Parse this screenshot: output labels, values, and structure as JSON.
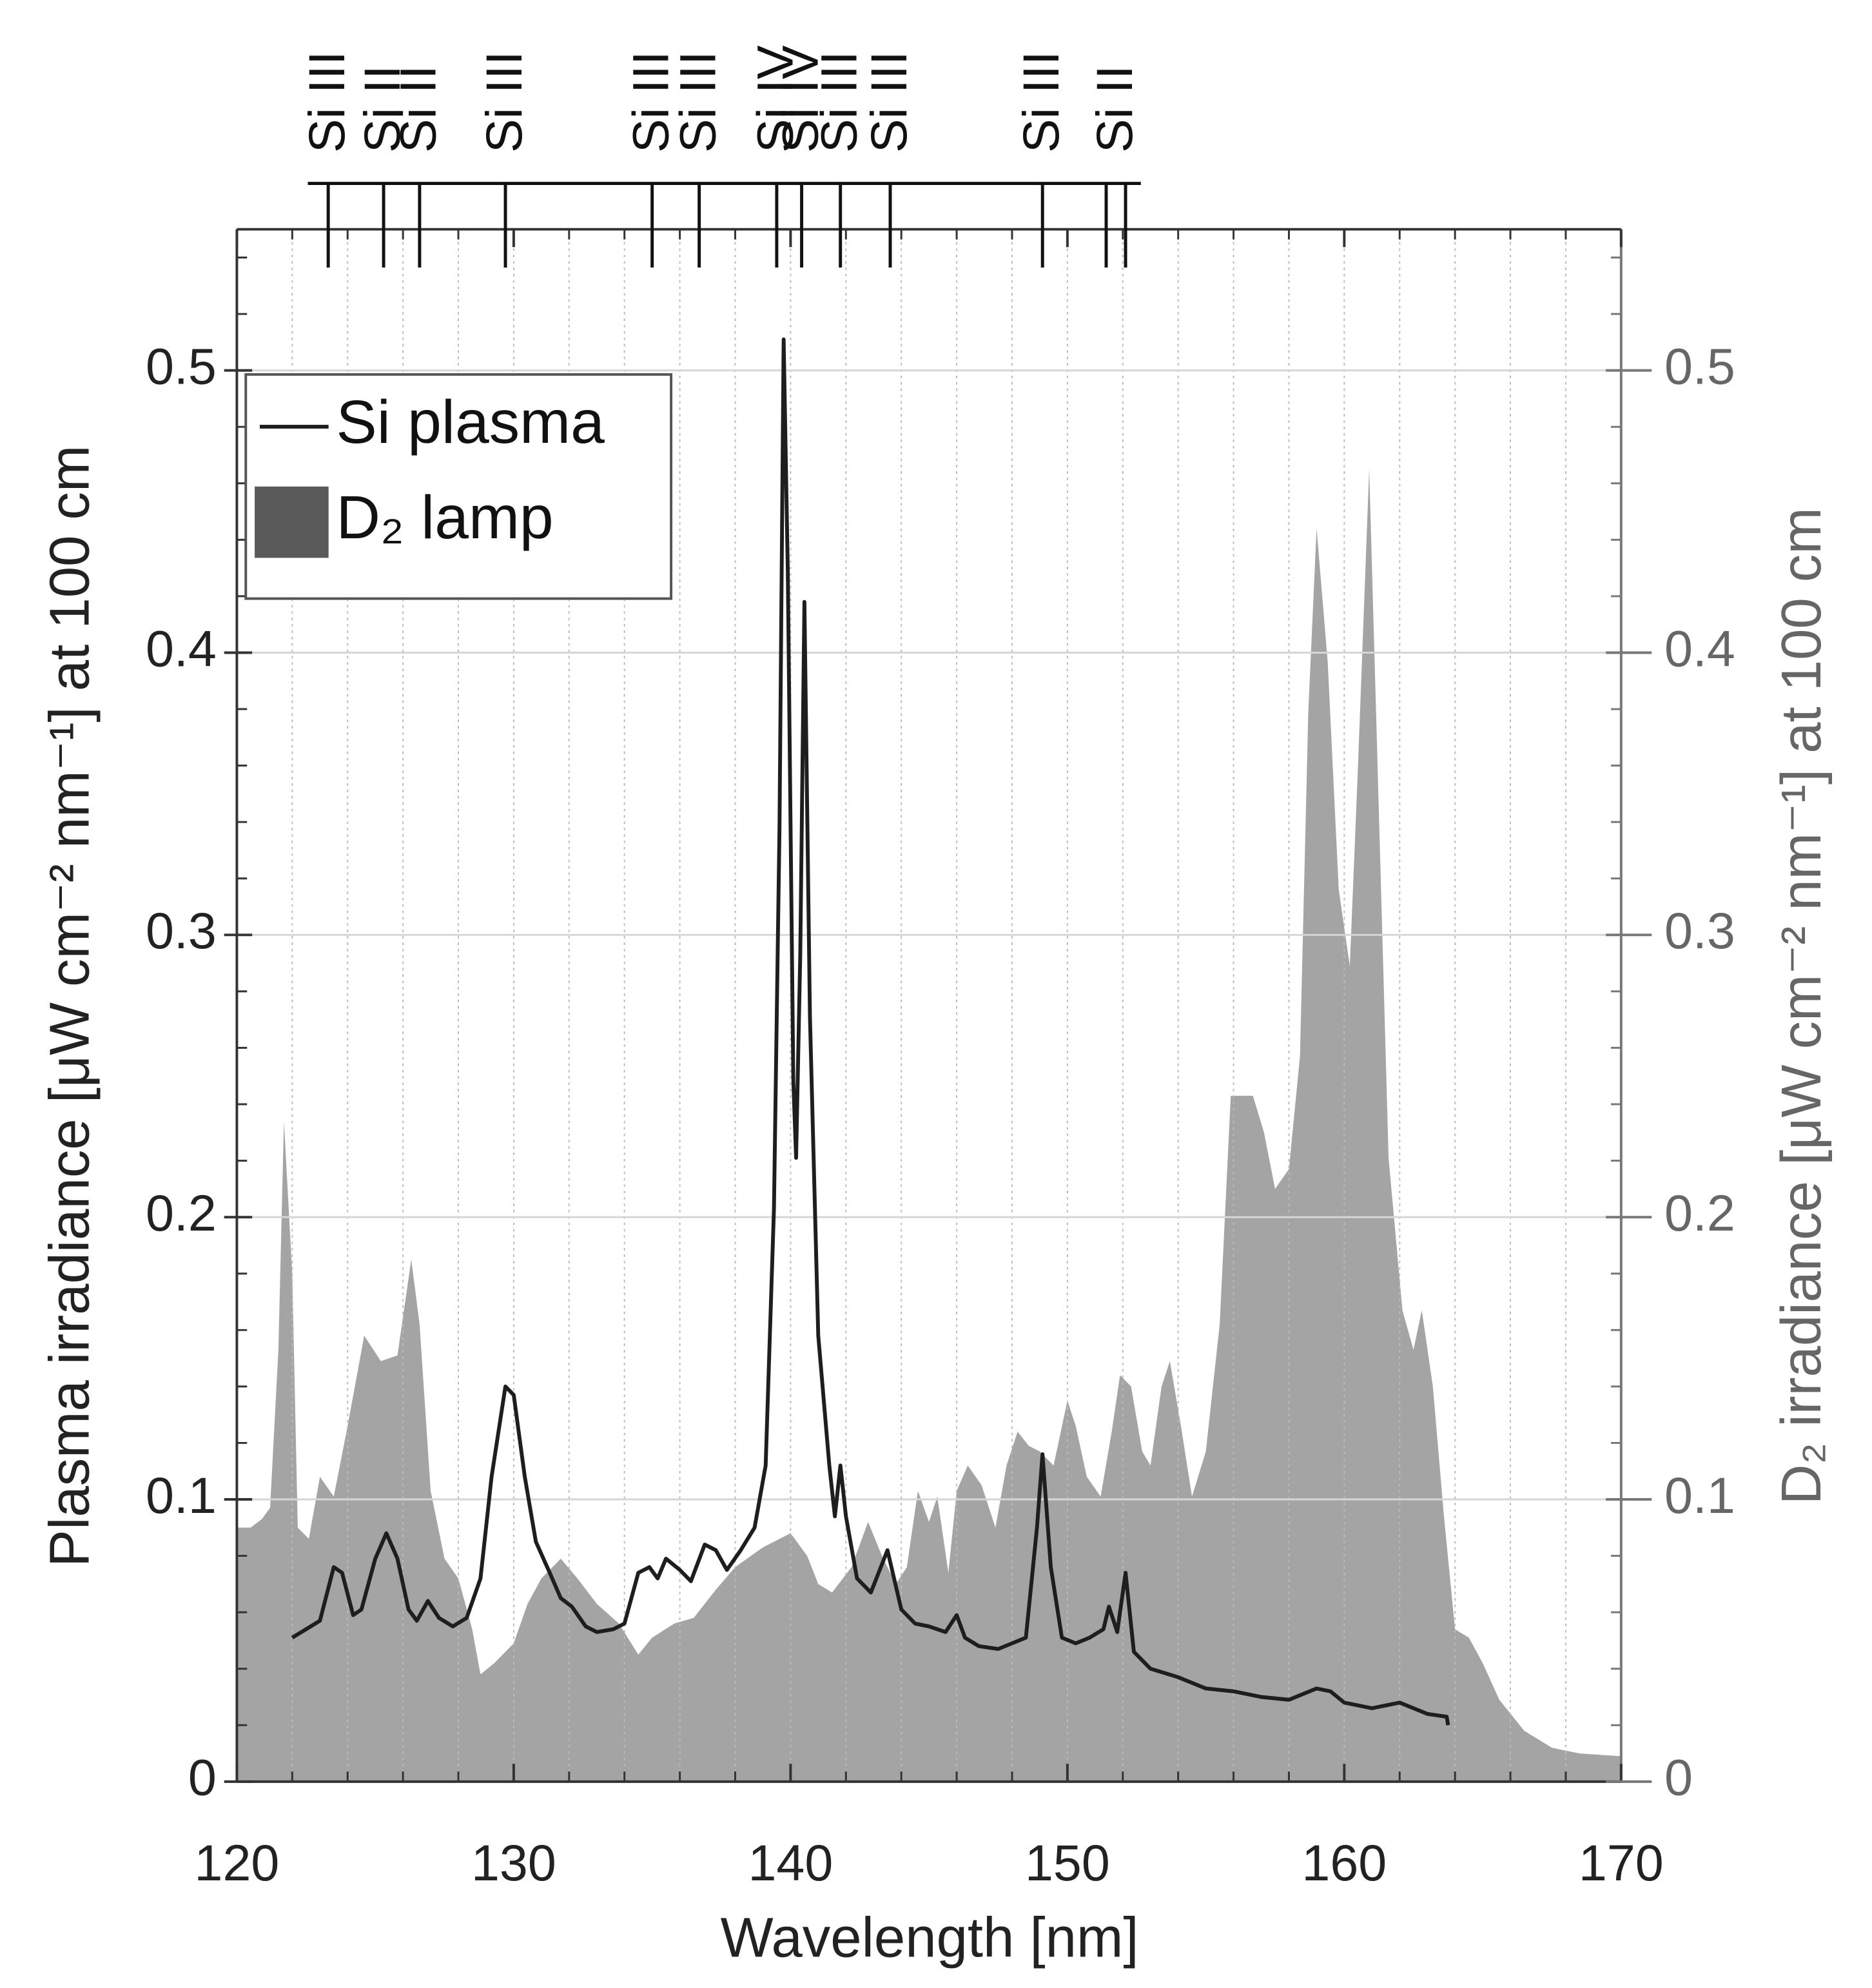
{
  "chart_data": {
    "type": "line",
    "x_label": "Wavelength [nm]",
    "y_label": "Plasma irradiance [μW cm⁻² nm⁻¹] at 100 cm",
    "y2_label": "D₂ irradiance [μW cm⁻² nm⁻¹] at 100 cm",
    "xlim": [
      120,
      170
    ],
    "xticks": [
      120,
      130,
      140,
      150,
      160,
      170
    ],
    "xminorticks": [
      122,
      124,
      126,
      128,
      132,
      134,
      136,
      138,
      142,
      144,
      146,
      148,
      152,
      154,
      156,
      158,
      162,
      164,
      166,
      168
    ],
    "ylim": [
      0,
      0.55
    ],
    "yticks": [
      0,
      0.1,
      0.2,
      0.3,
      0.4,
      0.5
    ],
    "yminorticks": [
      0.02,
      0.04,
      0.06,
      0.08,
      0.12,
      0.14,
      0.16,
      0.18,
      0.22,
      0.24,
      0.26,
      0.28,
      0.32,
      0.34,
      0.36,
      0.38,
      0.42,
      0.44,
      0.46,
      0.48,
      0.52,
      0.54
    ],
    "y2lim": [
      0,
      0.55
    ],
    "y2ticks": [
      0,
      0.1,
      0.2,
      0.3,
      0.4,
      0.5
    ],
    "grid": true,
    "legend": "upper left",
    "line_ids": [
      {
        "label": "Si III",
        "wavelengths": [
          123.3
        ]
      },
      {
        "label": "Si II",
        "wavelengths": [
          125.3
        ]
      },
      {
        "label": "Si II",
        "wavelengths": [
          126.6
        ]
      },
      {
        "label": "Si III",
        "wavelengths": [
          129.7
        ]
      },
      {
        "label": "Si III",
        "wavelengths": [
          135.0
        ]
      },
      {
        "label": "Si III",
        "wavelengths": [
          136.7
        ]
      },
      {
        "label": "Si IV",
        "wavelengths": [
          139.5
        ]
      },
      {
        "label": "Si IV",
        "wavelengths": [
          140.4
        ]
      },
      {
        "label": "Si III",
        "wavelengths": [
          141.8
        ]
      },
      {
        "label": "Si III",
        "wavelengths": [
          143.6
        ]
      },
      {
        "label": "Si III",
        "wavelengths": [
          149.1
        ]
      },
      {
        "label": "Si II",
        "wavelengths": [
          151.4,
          152.1
        ]
      }
    ],
    "series": [
      {
        "name": "D₂ lamp",
        "kind": "area",
        "axis": "y2",
        "color": "#5a5a5a",
        "opacity": 0.55,
        "x": [
          120.0,
          120.5,
          120.9,
          121.2,
          121.5,
          121.7,
          122.0,
          122.2,
          122.6,
          123.0,
          123.5,
          124.0,
          124.6,
          125.2,
          125.8,
          126.3,
          126.6,
          127.0,
          127.5,
          128.0,
          128.5,
          128.8,
          129.3,
          130.0,
          130.5,
          131.0,
          131.7,
          132.3,
          133.0,
          133.8,
          134.5,
          135.0,
          135.8,
          136.5,
          137.3,
          138.0,
          139.0,
          140.0,
          140.6,
          141.0,
          141.5,
          142.2,
          142.8,
          143.3,
          143.8,
          144.2,
          144.6,
          145.0,
          145.3,
          145.7,
          146.0,
          146.4,
          146.9,
          147.4,
          147.8,
          148.2,
          148.6,
          149.0,
          149.5,
          150.0,
          150.3,
          150.7,
          151.2,
          151.6,
          151.9,
          152.3,
          152.7,
          153.0,
          153.4,
          153.7,
          154.1,
          154.5,
          155.0,
          155.5,
          155.9,
          156.3,
          156.7,
          157.1,
          157.5,
          158.0,
          158.4,
          158.7,
          159.0,
          159.4,
          159.8,
          160.2,
          160.5,
          160.9,
          161.2,
          161.6,
          162.1,
          162.5,
          162.8,
          163.2,
          163.6,
          164.0,
          164.5,
          165.0,
          165.6,
          166.5,
          167.5,
          168.5,
          170.0
        ],
        "values": [
          0.09,
          0.09,
          0.093,
          0.097,
          0.153,
          0.234,
          0.18,
          0.09,
          0.086,
          0.108,
          0.101,
          0.126,
          0.158,
          0.149,
          0.151,
          0.185,
          0.162,
          0.103,
          0.079,
          0.072,
          0.054,
          0.038,
          0.042,
          0.049,
          0.063,
          0.072,
          0.079,
          0.072,
          0.063,
          0.056,
          0.045,
          0.051,
          0.056,
          0.058,
          0.068,
          0.076,
          0.083,
          0.088,
          0.08,
          0.07,
          0.067,
          0.076,
          0.092,
          0.08,
          0.07,
          0.076,
          0.103,
          0.092,
          0.101,
          0.074,
          0.103,
          0.112,
          0.105,
          0.09,
          0.112,
          0.124,
          0.119,
          0.117,
          0.112,
          0.135,
          0.126,
          0.108,
          0.101,
          0.124,
          0.144,
          0.14,
          0.117,
          0.112,
          0.14,
          0.149,
          0.126,
          0.101,
          0.117,
          0.162,
          0.243,
          0.243,
          0.243,
          0.23,
          0.21,
          0.217,
          0.257,
          0.379,
          0.444,
          0.397,
          0.316,
          0.289,
          0.361,
          0.465,
          0.361,
          0.221,
          0.167,
          0.153,
          0.167,
          0.14,
          0.094,
          0.054,
          0.051,
          0.042,
          0.029,
          0.018,
          0.012,
          0.01,
          0.009
        ]
      },
      {
        "name": "Si plasma",
        "kind": "line",
        "axis": "y",
        "color": "#1e1e1e",
        "x": [
          122.0,
          122.5,
          123.0,
          123.5,
          123.8,
          124.2,
          124.5,
          125.0,
          125.4,
          125.8,
          126.2,
          126.5,
          126.9,
          127.3,
          127.8,
          128.3,
          128.8,
          129.2,
          129.7,
          130.0,
          130.4,
          130.8,
          131.3,
          131.7,
          132.1,
          132.6,
          133.0,
          133.6,
          134.0,
          134.5,
          134.9,
          135.2,
          135.5,
          136.0,
          136.4,
          136.9,
          137.3,
          137.7,
          138.2,
          138.7,
          139.1,
          139.4,
          139.6,
          139.75,
          139.9,
          140.1,
          140.2,
          140.35,
          140.5,
          140.7,
          141.0,
          141.4,
          141.6,
          141.8,
          142.0,
          142.4,
          142.9,
          143.5,
          144.0,
          144.5,
          145.0,
          145.6,
          146.0,
          146.3,
          146.8,
          147.5,
          148.0,
          148.5,
          148.9,
          149.1,
          149.4,
          149.8,
          150.3,
          150.8,
          151.3,
          151.5,
          151.8,
          152.1,
          152.4,
          153.0,
          154.0,
          155.0,
          156.0,
          157.0,
          158.0,
          159.0,
          159.5,
          160.0,
          161.0,
          162.0,
          163.0,
          163.7,
          163.75
        ],
        "values": [
          0.051,
          0.054,
          0.057,
          0.076,
          0.074,
          0.059,
          0.061,
          0.079,
          0.088,
          0.079,
          0.061,
          0.057,
          0.064,
          0.058,
          0.055,
          0.058,
          0.072,
          0.108,
          0.14,
          0.137,
          0.108,
          0.085,
          0.074,
          0.065,
          0.062,
          0.055,
          0.053,
          0.054,
          0.056,
          0.074,
          0.076,
          0.072,
          0.079,
          0.075,
          0.071,
          0.084,
          0.082,
          0.075,
          0.082,
          0.09,
          0.112,
          0.203,
          0.338,
          0.511,
          0.429,
          0.248,
          0.221,
          0.293,
          0.418,
          0.271,
          0.158,
          0.112,
          0.094,
          0.112,
          0.094,
          0.072,
          0.067,
          0.082,
          0.061,
          0.056,
          0.055,
          0.053,
          0.059,
          0.051,
          0.048,
          0.047,
          0.049,
          0.051,
          0.09,
          0.116,
          0.076,
          0.051,
          0.049,
          0.051,
          0.054,
          0.062,
          0.053,
          0.074,
          0.046,
          0.04,
          0.037,
          0.033,
          0.032,
          0.03,
          0.029,
          0.033,
          0.032,
          0.028,
          0.026,
          0.028,
          0.024,
          0.023,
          0.02
        ]
      }
    ]
  }
}
